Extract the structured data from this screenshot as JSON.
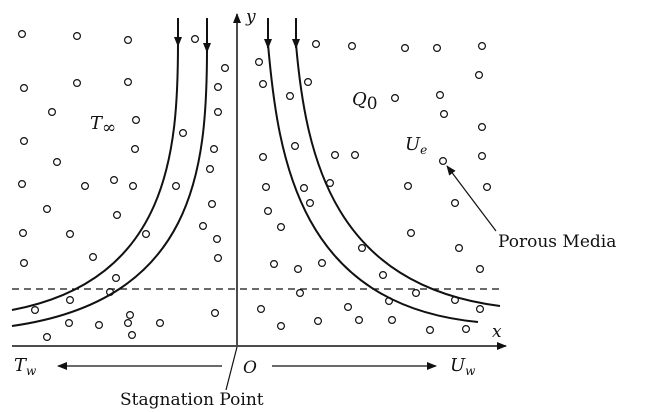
{
  "labels": {
    "y_axis": "y",
    "x_axis": "x",
    "origin": "O",
    "T_inf_main": "T",
    "T_inf_sub": "∞",
    "Q0_main": "Q",
    "Q0_sub": "0",
    "Ue_main": "U",
    "Ue_sub": "e",
    "porous_media": "Porous Media",
    "Tw_main": "T",
    "Tw_sub": "w",
    "Uw_main": "U",
    "Uw_sub": "w",
    "stagnation_point": "Stagnation Point"
  }
}
